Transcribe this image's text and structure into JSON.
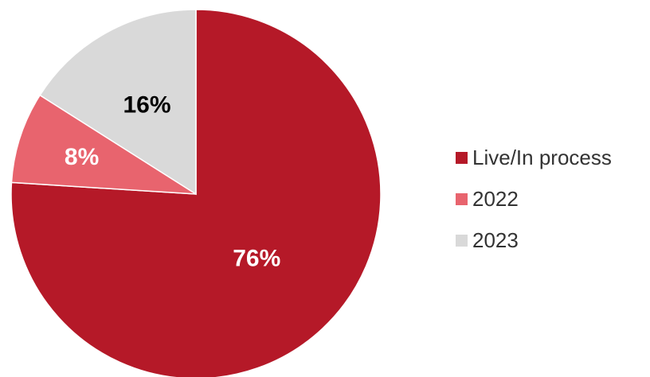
{
  "chart_data": {
    "type": "pie",
    "categories": [
      "Live/In process",
      "2022",
      "2023"
    ],
    "values": [
      76,
      8,
      16
    ],
    "data_labels": [
      "76%",
      "8%",
      "16%"
    ],
    "colors": [
      "#b51928",
      "#e8646e",
      "#d9d9d9"
    ],
    "label_colors": [
      "#ffffff",
      "#ffffff",
      "#000000"
    ],
    "legend_position": "right",
    "start_angle": "12 o'clock",
    "direction": "clockwise"
  }
}
